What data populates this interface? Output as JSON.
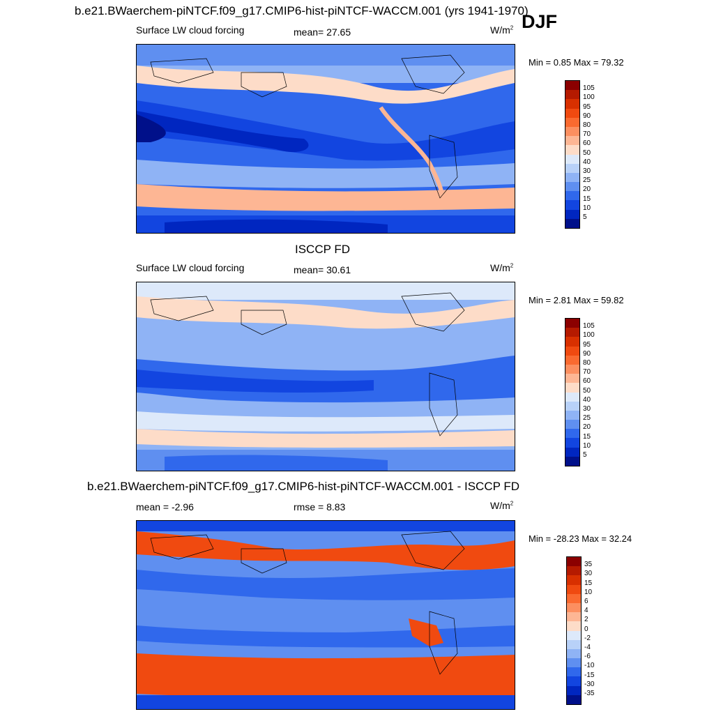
{
  "header": {
    "case_title": "b.e21.BWaerchem-piNTCF.f09_g17.CMIP6-hist-piNTCF-WACCM.001 (yrs 1941-1970)",
    "season": "DJF"
  },
  "panels": [
    {
      "id": "model",
      "title": "",
      "left_label": "Surface LW cloud forcing",
      "center_label": "mean=  27.65",
      "units": "W/m",
      "units_sup": "2",
      "minmax": "Min =   0.85 Max =  79.32"
    },
    {
      "id": "obs",
      "title": "ISCCP FD",
      "left_label": "Surface LW cloud forcing",
      "center_label": "mean=  30.61",
      "units": "W/m",
      "units_sup": "2",
      "minmax": "Min =   2.81 Max =  59.82"
    },
    {
      "id": "diff",
      "title": "b.e21.BWaerchem-piNTCF.f09_g17.CMIP6-hist-piNTCF-WACCM.001 - ISCCP FD",
      "left_label": "mean =  -2.96",
      "center_label": "rmse =   8.83",
      "units": "W/m",
      "units_sup": "2",
      "minmax": "Min = -28.23 Max =  32.24"
    }
  ],
  "colorbars": {
    "field": {
      "ticks": [
        "105",
        "100",
        "95",
        "90",
        "80",
        "70",
        "60",
        "50",
        "40",
        "30",
        "25",
        "20",
        "15",
        "10",
        "5"
      ],
      "colors": [
        "#8b0000",
        "#b51a00",
        "#d83000",
        "#f04a10",
        "#fa6a30",
        "#fc8f60",
        "#fdb694",
        "#fddcc8",
        "#dde9fa",
        "#b8d1f8",
        "#8fb3f5",
        "#5f8ff0",
        "#3068ec",
        "#1245e0",
        "#0026c0",
        "#00108a"
      ]
    },
    "diff": {
      "ticks": [
        "35",
        "30",
        "15",
        "10",
        "6",
        "4",
        "2",
        "0",
        "-2",
        "-4",
        "-6",
        "-10",
        "-15",
        "-30",
        "-35"
      ],
      "colors": [
        "#8b0000",
        "#b51a00",
        "#d83000",
        "#f04a10",
        "#fa6a30",
        "#fc8f60",
        "#fdb694",
        "#fddcc8",
        "#dde9fa",
        "#b8d1f8",
        "#8fb3f5",
        "#5f8ff0",
        "#3068ec",
        "#1245e0",
        "#0026c0",
        "#00108a"
      ]
    }
  },
  "chart_data": [
    {
      "type": "heatmap",
      "title": "Surface LW cloud forcing",
      "subtitle": "b.e21.BWaerchem-piNTCF.f09_g17.CMIP6-hist-piNTCF-WACCM.001 (yrs 1941-1970)",
      "season": "DJF",
      "units": "W/m2",
      "mean": 27.65,
      "min": 0.85,
      "max": 79.32,
      "levels": [
        5,
        10,
        15,
        20,
        25,
        30,
        40,
        50,
        60,
        70,
        80,
        90,
        95,
        100,
        105
      ],
      "map": "global lat-lon, 0E centered on Pacific"
    },
    {
      "type": "heatmap",
      "title": "ISCCP FD",
      "units": "W/m2",
      "mean": 30.61,
      "min": 2.81,
      "max": 59.82,
      "levels": [
        5,
        10,
        15,
        20,
        25,
        30,
        40,
        50,
        60,
        70,
        80,
        90,
        95,
        100,
        105
      ]
    },
    {
      "type": "heatmap",
      "title": "b.e21.BWaerchem-piNTCF.f09_g17.CMIP6-hist-piNTCF-WACCM.001 - ISCCP FD",
      "units": "W/m2",
      "mean": -2.96,
      "rmse": 8.83,
      "min": -28.23,
      "max": 32.24,
      "levels": [
        -35,
        -30,
        -15,
        -10,
        -6,
        -4,
        -2,
        0,
        2,
        4,
        6,
        10,
        15,
        30,
        35
      ]
    }
  ]
}
